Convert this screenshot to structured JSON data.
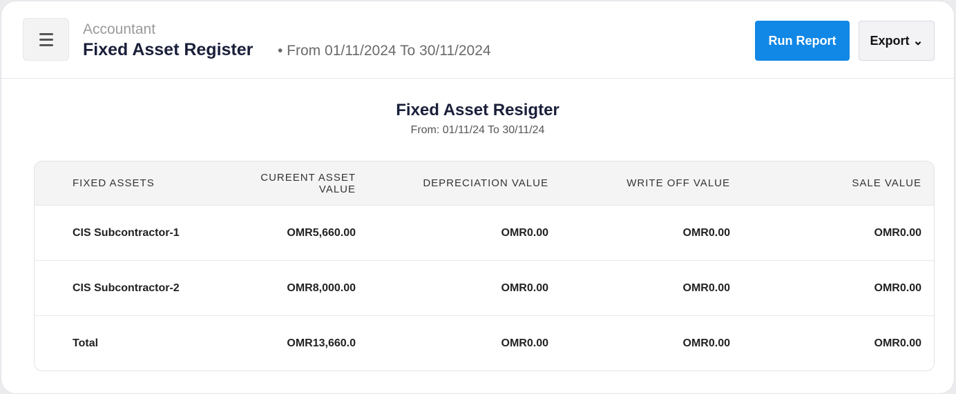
{
  "header": {
    "breadcrumb": "Accountant",
    "title": "Fixed Asset Register",
    "range": "• From 01/11/2024 To 30/11/2024",
    "run_label": "Run Report",
    "export_label": "Export ⌄"
  },
  "report": {
    "title": "Fixed Asset Resigter",
    "subtitle": "From: 01/11/24 To 30/11/24"
  },
  "table": {
    "columns": [
      "FIXED ASSETS",
      "CUREENT ASSET VALUE",
      "DEPRECIATION VALUE",
      "WRITE OFF VALUE",
      "SALE VALUE"
    ],
    "rows": [
      [
        "CIS Subcontractor-1",
        "OMR5,660.00",
        "OMR0.00",
        "OMR0.00",
        "OMR0.00"
      ],
      [
        "CIS Subcontractor-2",
        "OMR8,000.00",
        "OMR0.00",
        "OMR0.00",
        "OMR0.00"
      ],
      [
        "Total",
        "OMR13,660.0",
        "OMR0.00",
        "OMR0.00",
        "OMR0.00"
      ]
    ]
  },
  "colors": {
    "accent": "#1187e6"
  }
}
